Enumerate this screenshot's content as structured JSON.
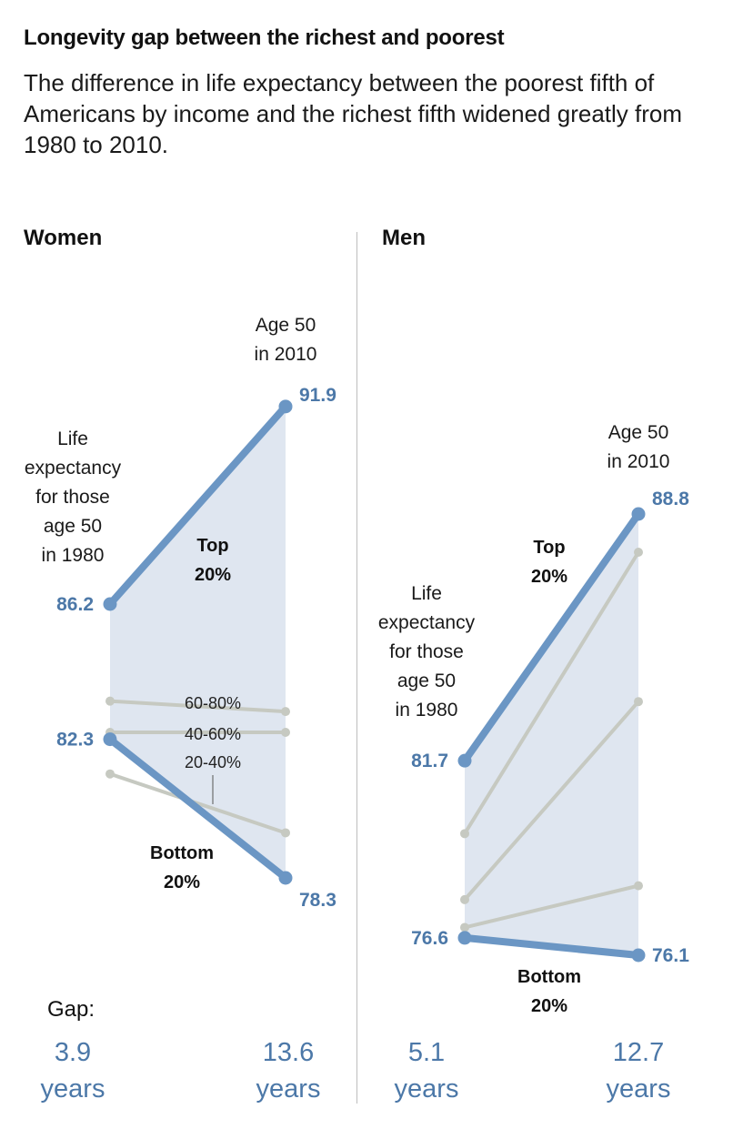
{
  "title": "Longevity gap between the richest and poorest",
  "subtitle": "The difference in life expectancy between the poorest fifth of Americans by income and the richest fifth widened greatly from 1980 to 2010.",
  "gap_label": "Gap:",
  "colors": {
    "top_bottom": "#6b96c4",
    "middle": "#c6c9c1",
    "band": "#dfe6f0",
    "value_text": "#4c78a8"
  },
  "chart_data": [
    {
      "type": "line",
      "title": "Women",
      "x": [
        "Age 50 in 1980",
        "Age 50 in 2010"
      ],
      "start_note": [
        "Life",
        "expectancy",
        "for those",
        "age 50",
        "in 1980"
      ],
      "end_note": [
        "Age 50",
        "in 2010"
      ],
      "series": [
        {
          "name": "Top 20%",
          "label_lines": [
            "Top",
            "20%"
          ],
          "values": [
            86.2,
            91.9
          ],
          "value_labels": [
            "86.2",
            "91.9"
          ]
        },
        {
          "name": "60-80%",
          "values": [
            83.4,
            83.1
          ]
        },
        {
          "name": "40-60%",
          "values": [
            82.5,
            82.5
          ]
        },
        {
          "name": "20-40%",
          "values": [
            81.3,
            79.6
          ]
        },
        {
          "name": "Bottom 20%",
          "label_lines": [
            "Bottom",
            "20%"
          ],
          "values": [
            82.3,
            78.3
          ],
          "value_labels": [
            "82.3",
            "78.3"
          ]
        }
      ],
      "band_labels": [
        "60-80%",
        "40-60%",
        "20-40%"
      ],
      "gaps": [
        {
          "value": "3.9",
          "unit": "years"
        },
        {
          "value": "13.6",
          "unit": "years"
        }
      ]
    },
    {
      "type": "line",
      "title": "Men",
      "x": [
        "Age 50 in 1980",
        "Age 50 in 2010"
      ],
      "start_note": [
        "Life",
        "expectancy",
        "for those",
        "age 50",
        "in 1980"
      ],
      "end_note": [
        "Age 50",
        "in 2010"
      ],
      "series": [
        {
          "name": "Top 20%",
          "label_lines": [
            "Top",
            "20%"
          ],
          "values": [
            81.7,
            88.8
          ],
          "value_labels": [
            "81.7",
            "88.8"
          ]
        },
        {
          "name": "60-80%",
          "values": [
            79.6,
            87.7
          ]
        },
        {
          "name": "40-60%",
          "values": [
            77.7,
            83.4
          ]
        },
        {
          "name": "20-40%",
          "values": [
            76.9,
            78.1
          ]
        },
        {
          "name": "Bottom 20%",
          "label_lines": [
            "Bottom",
            "20%"
          ],
          "values": [
            76.6,
            76.1
          ],
          "value_labels": [
            "76.6",
            "76.1"
          ]
        }
      ],
      "gaps": [
        {
          "value": "5.1",
          "unit": "years"
        },
        {
          "value": "12.7",
          "unit": "years"
        }
      ]
    }
  ]
}
